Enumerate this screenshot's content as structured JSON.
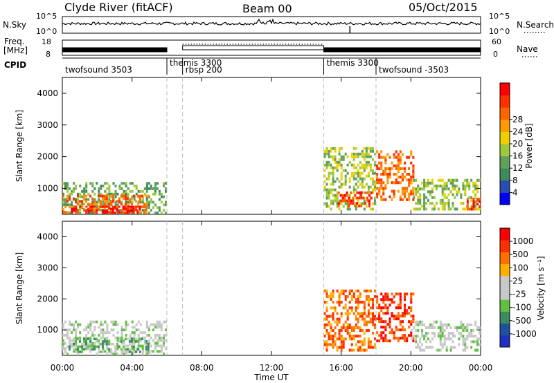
{
  "header": {
    "station": "Clyde River (fitACF)",
    "beam": "Beam 00",
    "date": "05/Oct/2015"
  },
  "strip_labels": {
    "left_nsky": "N.Sky",
    "left_freq": "Freq.",
    "left_freq_unit": "[MHz]",
    "left_cpid": "CPID",
    "right_nsearch": "N.Search",
    "right_nave": "Nave",
    "nsky_ticks": [
      "10^5",
      "10^0"
    ],
    "nsearch_ticks": [
      "10^5",
      "10^0"
    ],
    "freq_ticks": [
      "18",
      "8"
    ],
    "nave_ticks": [
      "60",
      "0"
    ]
  },
  "cpid_segments": [
    {
      "start": 0.0,
      "label": "twofsound 3503"
    },
    {
      "start": 6.0,
      "label": "themis 3300"
    },
    {
      "start": 6.9,
      "label": "rbsp 200"
    },
    {
      "start": 15.0,
      "label": "themis 3300"
    },
    {
      "start": 18.0,
      "label": "twofsound -3503"
    }
  ],
  "colors": {
    "power": [
      "#0000ff",
      "#2a4db0",
      "#3d8a5a",
      "#5fa05a",
      "#9dc93c",
      "#f0d000",
      "#ff9a00",
      "#ff6400",
      "#ff3000",
      "#ff0000"
    ],
    "velocity": [
      "#2030c0",
      "#2050a0",
      "#3e8a60",
      "#60c040",
      "#c8c8c8",
      "#c8c8c8",
      "#ffb000",
      "#ff7000",
      "#ff3000",
      "#ff0000"
    ]
  },
  "chart_data": [
    {
      "type": "heatmap",
      "name": "power",
      "ylabel": "Slant Range [km]",
      "xlim": [
        0,
        24
      ],
      "ylim": [
        180,
        4500
      ],
      "yticks": [
        "1000",
        "2000",
        "3000",
        "4000"
      ],
      "colorbar_label": "Power [dB]",
      "colorbar_ticks": [
        "4",
        "8",
        "12",
        "16",
        "20",
        "24",
        "28"
      ],
      "regions": [
        {
          "x0": 0.0,
          "x1": 6.0,
          "y0": 180,
          "y1": 1200,
          "level": 3
        },
        {
          "x0": 0.0,
          "x1": 5.0,
          "y0": 200,
          "y1": 800,
          "level": 7
        },
        {
          "x0": 0.5,
          "x1": 4.5,
          "y0": 200,
          "y1": 450,
          "level": 9
        },
        {
          "x0": 15.0,
          "x1": 18.0,
          "y0": 300,
          "y1": 2300,
          "level": 4
        },
        {
          "x0": 15.8,
          "x1": 17.8,
          "y0": 400,
          "y1": 900,
          "level": 8
        },
        {
          "x0": 18.0,
          "x1": 20.2,
          "y0": 600,
          "y1": 2200,
          "level": 7
        },
        {
          "x0": 20.0,
          "x1": 24.0,
          "y0": 300,
          "y1": 1300,
          "level": 4
        },
        {
          "x0": 23.2,
          "x1": 24.0,
          "y0": 300,
          "y1": 700,
          "level": 8
        }
      ]
    },
    {
      "type": "heatmap",
      "name": "velocity",
      "xlabel": "Time UT",
      "ylabel": "Slant Range [km]",
      "xlim": [
        0,
        24
      ],
      "ylim": [
        180,
        4500
      ],
      "xticks": [
        "00:00",
        "04:00",
        "08:00",
        "12:00",
        "16:00",
        "20:00",
        "00:00"
      ],
      "yticks": [
        "1000",
        "2000",
        "3000",
        "4000"
      ],
      "colorbar_label": "Velocity [m s⁻¹]",
      "colorbar_ticks": [
        "1000",
        "500",
        "100",
        "25",
        "-25",
        "-100",
        "-500",
        "-1000"
      ],
      "regions": [
        {
          "x0": 0.0,
          "x1": 6.0,
          "y0": 180,
          "y1": 1300,
          "level": 4
        },
        {
          "x0": 0.0,
          "x1": 5.0,
          "y0": 250,
          "y1": 750,
          "level": 3
        },
        {
          "x0": 15.0,
          "x1": 18.0,
          "y0": 300,
          "y1": 2300,
          "level": 7
        },
        {
          "x0": 18.0,
          "x1": 20.2,
          "y0": 600,
          "y1": 2200,
          "level": 8
        },
        {
          "x0": 20.0,
          "x1": 24.0,
          "y0": 300,
          "y1": 1300,
          "level": 4
        }
      ]
    }
  ]
}
